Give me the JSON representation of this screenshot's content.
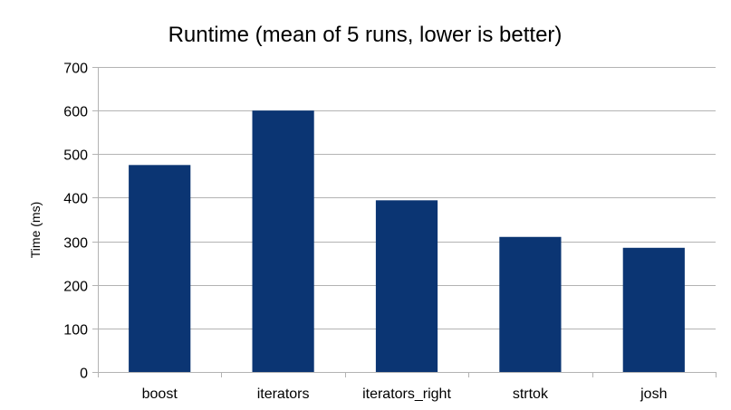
{
  "chart_data": {
    "type": "bar",
    "title": "Runtime (mean of 5 runs, lower is better)",
    "xlabel": "",
    "ylabel": "Time (ms)",
    "categories": [
      "boost",
      "iterators",
      "iterators_right",
      "strtok",
      "josh"
    ],
    "values": [
      475,
      600,
      394,
      310,
      285
    ],
    "ylim": [
      0,
      700
    ],
    "yticks": [
      0,
      100,
      200,
      300,
      400,
      500,
      600,
      700
    ],
    "grid": true,
    "legend": "none",
    "colors": {
      "bar": "#0b3573",
      "grid": "#b3b3b3",
      "axis": "#b3b3b3"
    }
  }
}
